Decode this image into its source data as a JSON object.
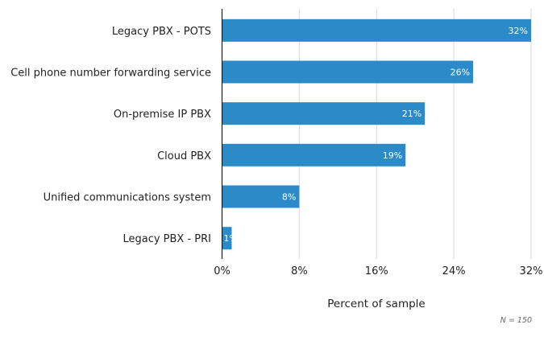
{
  "chart_data": {
    "type": "bar",
    "orientation": "horizontal",
    "categories": [
      "Legacy PBX - POTS",
      "Cell phone number forwarding service",
      "On-premise IP PBX",
      "Cloud PBX",
      "Unified communications system",
      "Legacy PBX - PRI"
    ],
    "values": [
      32,
      26,
      21,
      19,
      8,
      1
    ],
    "data_labels": [
      "32%",
      "26%",
      "21%",
      "19%",
      "8%",
      "1%"
    ],
    "xlabel": "Percent of sample",
    "ylabel": "",
    "xlim": [
      0,
      32
    ],
    "x_ticks": [
      0,
      8,
      16,
      24,
      32
    ],
    "x_tick_labels": [
      "0%",
      "8%",
      "16%",
      "24%",
      "32%"
    ],
    "grid": "vertical",
    "note": "N = 150",
    "bar_color": "#2a8bc8"
  }
}
